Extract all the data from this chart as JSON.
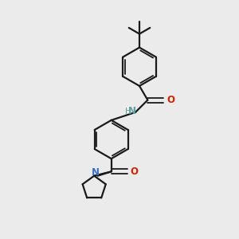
{
  "background_color": "#ebebeb",
  "bond_color": "#1a1a1a",
  "N_color": "#3a6fbf",
  "NH_color": "#5f9ea0",
  "O_color": "#cc2200",
  "figsize": [
    3.0,
    3.0
  ],
  "dpi": 100,
  "xlim": [
    0,
    10
  ],
  "ylim": [
    0,
    10
  ]
}
